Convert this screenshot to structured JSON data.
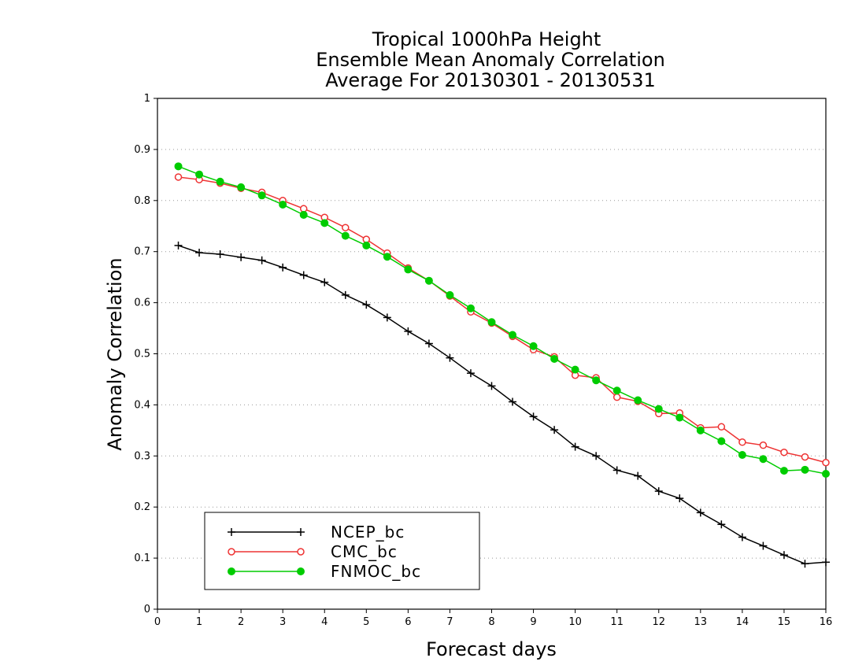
{
  "chart_data": {
    "type": "line",
    "title": [
      "Tropical 1000hPa Height",
      "Ensemble Mean Anomaly Correlation",
      "Average For 20130301 - 20130531"
    ],
    "xlabel": "Forecast days",
    "ylabel": "Anomaly Correlation",
    "xlim": [
      0,
      16
    ],
    "ylim": [
      0,
      1
    ],
    "xticks": [
      "0",
      "1",
      "2",
      "3",
      "4",
      "5",
      "6",
      "7",
      "8",
      "9",
      "10",
      "11",
      "12",
      "13",
      "14",
      "15",
      "16"
    ],
    "yticks": [
      "0",
      "0.1",
      "0.2",
      "0.3",
      "0.4",
      "0.5",
      "0.6",
      "0.7",
      "0.8",
      "0.9",
      "1"
    ],
    "grid": "horizontal dotted",
    "legend_position": "bottom-left",
    "x": [
      0.5,
      1,
      1.5,
      2,
      2.5,
      3,
      3.5,
      4,
      4.5,
      5,
      5.5,
      6,
      6.5,
      7,
      7.5,
      8,
      8.5,
      9,
      9.5,
      10,
      10.5,
      11,
      11.5,
      12,
      12.5,
      13,
      13.5,
      14,
      14.5,
      15,
      15.5,
      16
    ],
    "series": [
      {
        "name": "NCEP_bc",
        "color": "#000000",
        "marker": "plus",
        "values": [
          0.712,
          0.698,
          0.695,
          0.689,
          0.683,
          0.669,
          0.654,
          0.64,
          0.615,
          0.596,
          0.571,
          0.544,
          0.52,
          0.492,
          0.462,
          0.437,
          0.406,
          0.377,
          0.351,
          0.318,
          0.3,
          0.272,
          0.261,
          0.231,
          0.217,
          0.189,
          0.166,
          0.141,
          0.124,
          0.106,
          0.089,
          0.092
        ]
      },
      {
        "name": "CMC_bc",
        "color": "#ee3333",
        "marker": "open-circle",
        "values": [
          0.846,
          0.841,
          0.834,
          0.824,
          0.816,
          0.8,
          0.784,
          0.767,
          0.747,
          0.724,
          0.697,
          0.668,
          0.643,
          0.613,
          0.582,
          0.56,
          0.534,
          0.508,
          0.494,
          0.458,
          0.453,
          0.415,
          0.407,
          0.383,
          0.384,
          0.355,
          0.357,
          0.327,
          0.321,
          0.307,
          0.298,
          0.287
        ]
      },
      {
        "name": "FNMOC_bc",
        "color": "#00cc00",
        "marker": "filled-circle",
        "values": [
          0.867,
          0.851,
          0.837,
          0.826,
          0.81,
          0.792,
          0.772,
          0.756,
          0.731,
          0.712,
          0.69,
          0.665,
          0.643,
          0.615,
          0.589,
          0.562,
          0.537,
          0.515,
          0.49,
          0.469,
          0.448,
          0.428,
          0.409,
          0.392,
          0.375,
          0.35,
          0.329,
          0.302,
          0.294,
          0.271,
          0.273,
          0.265
        ]
      }
    ]
  }
}
